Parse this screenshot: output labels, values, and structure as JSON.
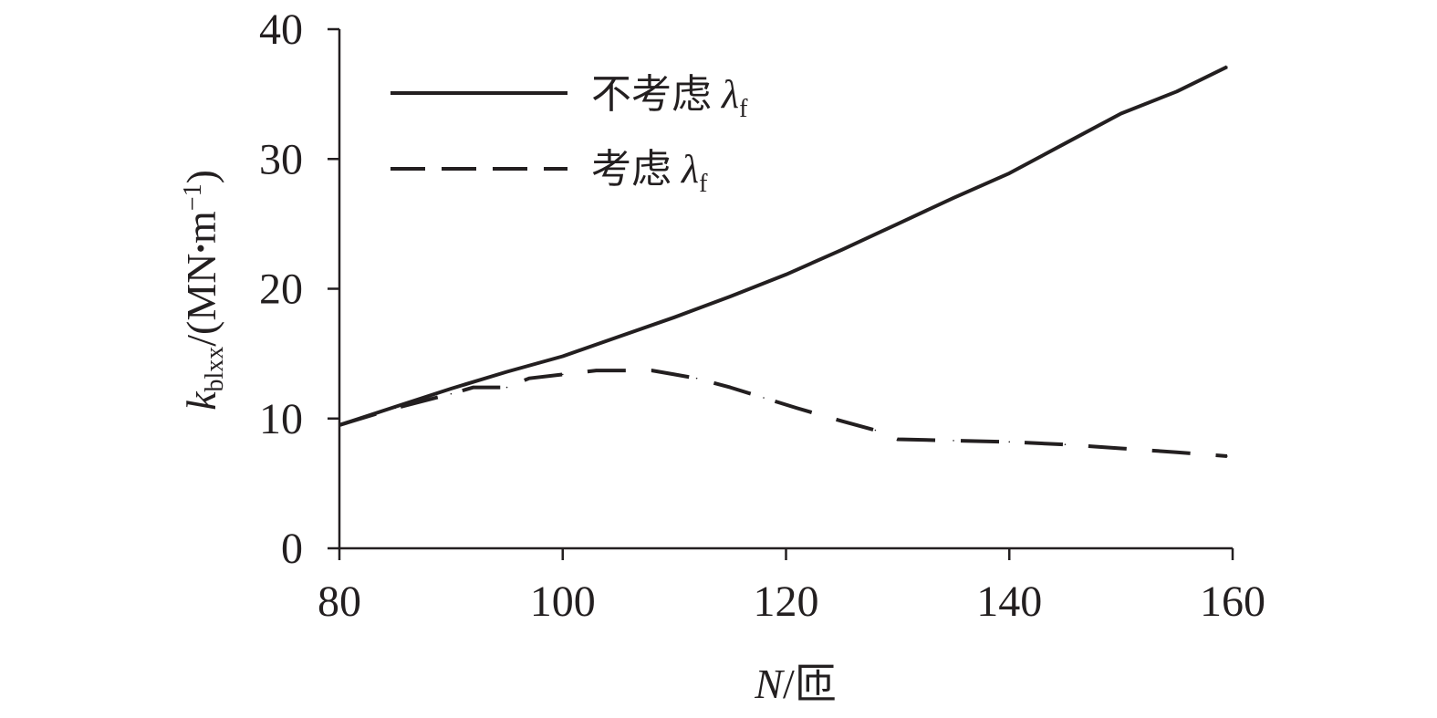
{
  "chart_data": {
    "type": "line",
    "xlabel": {
      "var": "N",
      "unit": "/匝"
    },
    "ylabel": {
      "var": "k",
      "sub": "blxx",
      "unit_open": "/(MN",
      "dot": "•",
      "unit_m": "m",
      "unit_exp": "−1",
      "unit_close": ")"
    },
    "xlim": [
      80,
      160
    ],
    "ylim": [
      0,
      40
    ],
    "x_ticks": [
      "80",
      "100",
      "120",
      "140",
      "160"
    ],
    "y_ticks": [
      "0",
      "10",
      "20",
      "30",
      "40"
    ],
    "grid": false,
    "legend_position": "top-left",
    "series": [
      {
        "name": "不考虑 λf",
        "name_text": "不考虑 ",
        "name_symbol": "λ",
        "name_sub": "f",
        "style": "solid",
        "color": "#231f20",
        "x": [
          80,
          85,
          90,
          95,
          100,
          105,
          110,
          115,
          120,
          125,
          130,
          135,
          140,
          145,
          150,
          155,
          159.5
        ],
        "y": [
          9.5,
          10.9,
          12.3,
          13.6,
          14.8,
          16.3,
          17.8,
          19.4,
          21.1,
          23.0,
          25.0,
          27.0,
          28.9,
          31.2,
          33.5,
          35.2,
          37.1
        ]
      },
      {
        "name": "考虑 λf",
        "name_text": "考虑 ",
        "name_symbol": "λ",
        "name_sub": "f",
        "style": "dashed",
        "color": "#231f20",
        "x": [
          80,
          85,
          90,
          92,
          95,
          97,
          100,
          103,
          108,
          110,
          112,
          115,
          118,
          121,
          125,
          128,
          130,
          135,
          140,
          145,
          150,
          155,
          159.5
        ],
        "y": [
          9.5,
          10.8,
          11.9,
          12.4,
          12.4,
          13.1,
          13.4,
          13.7,
          13.7,
          13.4,
          13.1,
          12.4,
          11.6,
          10.8,
          9.8,
          9.1,
          8.4,
          8.3,
          8.2,
          8.0,
          7.7,
          7.4,
          7.1
        ]
      }
    ]
  }
}
